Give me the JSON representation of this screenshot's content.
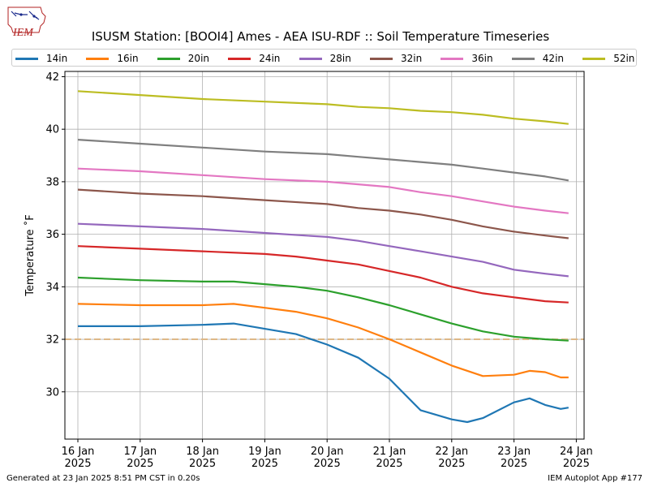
{
  "logo": {
    "text": "IEM"
  },
  "footer": {
    "left": "Generated at 23 Jan 2025 8:51 PM CST in 0.20s",
    "right": "IEM Autoplot App #177"
  },
  "chart_data": {
    "type": "line",
    "title": "ISUSM Station: [BOOI4] Ames - AEA ISU-RDF :: Soil Temperature Timeseries",
    "xlabel": "",
    "ylabel": "Temperature ˚F",
    "xlim": [
      "2025-01-15T19:00",
      "2025-01-24T03:00"
    ],
    "ylim": [
      28.2,
      42.2
    ],
    "x_ticks": [
      {
        "at": "2025-01-16T00:00",
        "label": [
          "16 Jan",
          "2025"
        ]
      },
      {
        "at": "2025-01-17T00:00",
        "label": [
          "17 Jan",
          "2025"
        ]
      },
      {
        "at": "2025-01-18T00:00",
        "label": [
          "18 Jan",
          "2025"
        ]
      },
      {
        "at": "2025-01-19T00:00",
        "label": [
          "19 Jan",
          "2025"
        ]
      },
      {
        "at": "2025-01-20T00:00",
        "label": [
          "20 Jan",
          "2025"
        ]
      },
      {
        "at": "2025-01-21T00:00",
        "label": [
          "21 Jan",
          "2025"
        ]
      },
      {
        "at": "2025-01-22T00:00",
        "label": [
          "22 Jan",
          "2025"
        ]
      },
      {
        "at": "2025-01-23T00:00",
        "label": [
          "23 Jan",
          "2025"
        ]
      },
      {
        "at": "2025-01-24T00:00",
        "label": [
          "24 Jan",
          "2025"
        ]
      }
    ],
    "y_ticks": [
      30,
      32,
      34,
      36,
      38,
      40,
      42
    ],
    "grid": true,
    "legend_position": "top",
    "reference_line": {
      "y": 32,
      "color": "#deb887",
      "style": "dashed"
    },
    "series": [
      {
        "name": "14in",
        "color": "#1f77b4",
        "points": [
          [
            "2025-01-16T00:00",
            32.5
          ],
          [
            "2025-01-17T00:00",
            32.5
          ],
          [
            "2025-01-18T00:00",
            32.55
          ],
          [
            "2025-01-18T12:00",
            32.6
          ],
          [
            "2025-01-19T00:00",
            32.4
          ],
          [
            "2025-01-19T12:00",
            32.2
          ],
          [
            "2025-01-20T00:00",
            31.8
          ],
          [
            "2025-01-20T12:00",
            31.3
          ],
          [
            "2025-01-21T00:00",
            30.5
          ],
          [
            "2025-01-21T12:00",
            29.3
          ],
          [
            "2025-01-22T00:00",
            28.95
          ],
          [
            "2025-01-22T06:00",
            28.85
          ],
          [
            "2025-01-22T12:00",
            29.0
          ],
          [
            "2025-01-23T00:00",
            29.6
          ],
          [
            "2025-01-23T06:00",
            29.75
          ],
          [
            "2025-01-23T12:00",
            29.5
          ],
          [
            "2025-01-23T18:00",
            29.35
          ],
          [
            "2025-01-23T21:00",
            29.4
          ]
        ]
      },
      {
        "name": "16in",
        "color": "#ff7f0e",
        "points": [
          [
            "2025-01-16T00:00",
            33.35
          ],
          [
            "2025-01-17T00:00",
            33.3
          ],
          [
            "2025-01-18T00:00",
            33.3
          ],
          [
            "2025-01-18T12:00",
            33.35
          ],
          [
            "2025-01-19T00:00",
            33.2
          ],
          [
            "2025-01-19T12:00",
            33.05
          ],
          [
            "2025-01-20T00:00",
            32.8
          ],
          [
            "2025-01-20T12:00",
            32.45
          ],
          [
            "2025-01-21T00:00",
            32.0
          ],
          [
            "2025-01-21T12:00",
            31.5
          ],
          [
            "2025-01-22T00:00",
            31.0
          ],
          [
            "2025-01-22T12:00",
            30.6
          ],
          [
            "2025-01-23T00:00",
            30.65
          ],
          [
            "2025-01-23T06:00",
            30.8
          ],
          [
            "2025-01-23T12:00",
            30.75
          ],
          [
            "2025-01-23T18:00",
            30.55
          ],
          [
            "2025-01-23T21:00",
            30.55
          ]
        ]
      },
      {
        "name": "20in",
        "color": "#2ca02c",
        "points": [
          [
            "2025-01-16T00:00",
            34.35
          ],
          [
            "2025-01-17T00:00",
            34.25
          ],
          [
            "2025-01-18T00:00",
            34.2
          ],
          [
            "2025-01-18T12:00",
            34.2
          ],
          [
            "2025-01-19T00:00",
            34.1
          ],
          [
            "2025-01-19T12:00",
            34.0
          ],
          [
            "2025-01-20T00:00",
            33.85
          ],
          [
            "2025-01-20T12:00",
            33.6
          ],
          [
            "2025-01-21T00:00",
            33.3
          ],
          [
            "2025-01-21T12:00",
            32.95
          ],
          [
            "2025-01-22T00:00",
            32.6
          ],
          [
            "2025-01-22T12:00",
            32.3
          ],
          [
            "2025-01-23T00:00",
            32.1
          ],
          [
            "2025-01-23T12:00",
            32.0
          ],
          [
            "2025-01-23T21:00",
            31.95
          ]
        ]
      },
      {
        "name": "24in",
        "color": "#d62728",
        "points": [
          [
            "2025-01-16T00:00",
            35.55
          ],
          [
            "2025-01-17T00:00",
            35.45
          ],
          [
            "2025-01-18T00:00",
            35.35
          ],
          [
            "2025-01-19T00:00",
            35.25
          ],
          [
            "2025-01-19T12:00",
            35.15
          ],
          [
            "2025-01-20T00:00",
            35.0
          ],
          [
            "2025-01-20T12:00",
            34.85
          ],
          [
            "2025-01-21T00:00",
            34.6
          ],
          [
            "2025-01-21T12:00",
            34.35
          ],
          [
            "2025-01-22T00:00",
            34.0
          ],
          [
            "2025-01-22T12:00",
            33.75
          ],
          [
            "2025-01-23T00:00",
            33.6
          ],
          [
            "2025-01-23T12:00",
            33.45
          ],
          [
            "2025-01-23T21:00",
            33.4
          ]
        ]
      },
      {
        "name": "28in",
        "color": "#9467bd",
        "points": [
          [
            "2025-01-16T00:00",
            36.4
          ],
          [
            "2025-01-17T00:00",
            36.3
          ],
          [
            "2025-01-18T00:00",
            36.2
          ],
          [
            "2025-01-19T00:00",
            36.05
          ],
          [
            "2025-01-20T00:00",
            35.9
          ],
          [
            "2025-01-20T12:00",
            35.75
          ],
          [
            "2025-01-21T00:00",
            35.55
          ],
          [
            "2025-01-21T12:00",
            35.35
          ],
          [
            "2025-01-22T00:00",
            35.15
          ],
          [
            "2025-01-22T12:00",
            34.95
          ],
          [
            "2025-01-23T00:00",
            34.65
          ],
          [
            "2025-01-23T12:00",
            34.5
          ],
          [
            "2025-01-23T21:00",
            34.4
          ]
        ]
      },
      {
        "name": "32in",
        "color": "#8c564b",
        "points": [
          [
            "2025-01-16T00:00",
            37.7
          ],
          [
            "2025-01-17T00:00",
            37.55
          ],
          [
            "2025-01-18T00:00",
            37.45
          ],
          [
            "2025-01-19T00:00",
            37.3
          ],
          [
            "2025-01-20T00:00",
            37.15
          ],
          [
            "2025-01-20T12:00",
            37.0
          ],
          [
            "2025-01-21T00:00",
            36.9
          ],
          [
            "2025-01-21T12:00",
            36.75
          ],
          [
            "2025-01-22T00:00",
            36.55
          ],
          [
            "2025-01-22T12:00",
            36.3
          ],
          [
            "2025-01-23T00:00",
            36.1
          ],
          [
            "2025-01-23T12:00",
            35.95
          ],
          [
            "2025-01-23T21:00",
            35.85
          ]
        ]
      },
      {
        "name": "36in",
        "color": "#e377c2",
        "points": [
          [
            "2025-01-16T00:00",
            38.5
          ],
          [
            "2025-01-17T00:00",
            38.4
          ],
          [
            "2025-01-18T00:00",
            38.25
          ],
          [
            "2025-01-19T00:00",
            38.1
          ],
          [
            "2025-01-20T00:00",
            38.0
          ],
          [
            "2025-01-20T12:00",
            37.9
          ],
          [
            "2025-01-21T00:00",
            37.8
          ],
          [
            "2025-01-21T12:00",
            37.6
          ],
          [
            "2025-01-22T00:00",
            37.45
          ],
          [
            "2025-01-22T12:00",
            37.25
          ],
          [
            "2025-01-23T00:00",
            37.05
          ],
          [
            "2025-01-23T12:00",
            36.9
          ],
          [
            "2025-01-23T21:00",
            36.8
          ]
        ]
      },
      {
        "name": "42in",
        "color": "#7f7f7f",
        "points": [
          [
            "2025-01-16T00:00",
            39.6
          ],
          [
            "2025-01-17T00:00",
            39.45
          ],
          [
            "2025-01-18T00:00",
            39.3
          ],
          [
            "2025-01-19T00:00",
            39.15
          ],
          [
            "2025-01-20T00:00",
            39.05
          ],
          [
            "2025-01-20T12:00",
            38.95
          ],
          [
            "2025-01-21T00:00",
            38.85
          ],
          [
            "2025-01-21T12:00",
            38.75
          ],
          [
            "2025-01-22T00:00",
            38.65
          ],
          [
            "2025-01-22T12:00",
            38.5
          ],
          [
            "2025-01-23T00:00",
            38.35
          ],
          [
            "2025-01-23T12:00",
            38.2
          ],
          [
            "2025-01-23T21:00",
            38.05
          ]
        ]
      },
      {
        "name": "52in",
        "color": "#bcbd22",
        "points": [
          [
            "2025-01-16T00:00",
            41.45
          ],
          [
            "2025-01-17T00:00",
            41.3
          ],
          [
            "2025-01-18T00:00",
            41.15
          ],
          [
            "2025-01-19T00:00",
            41.05
          ],
          [
            "2025-01-20T00:00",
            40.95
          ],
          [
            "2025-01-20T12:00",
            40.85
          ],
          [
            "2025-01-21T00:00",
            40.8
          ],
          [
            "2025-01-21T12:00",
            40.7
          ],
          [
            "2025-01-22T00:00",
            40.65
          ],
          [
            "2025-01-22T12:00",
            40.55
          ],
          [
            "2025-01-23T00:00",
            40.4
          ],
          [
            "2025-01-23T12:00",
            40.3
          ],
          [
            "2025-01-23T21:00",
            40.2
          ]
        ]
      }
    ]
  }
}
